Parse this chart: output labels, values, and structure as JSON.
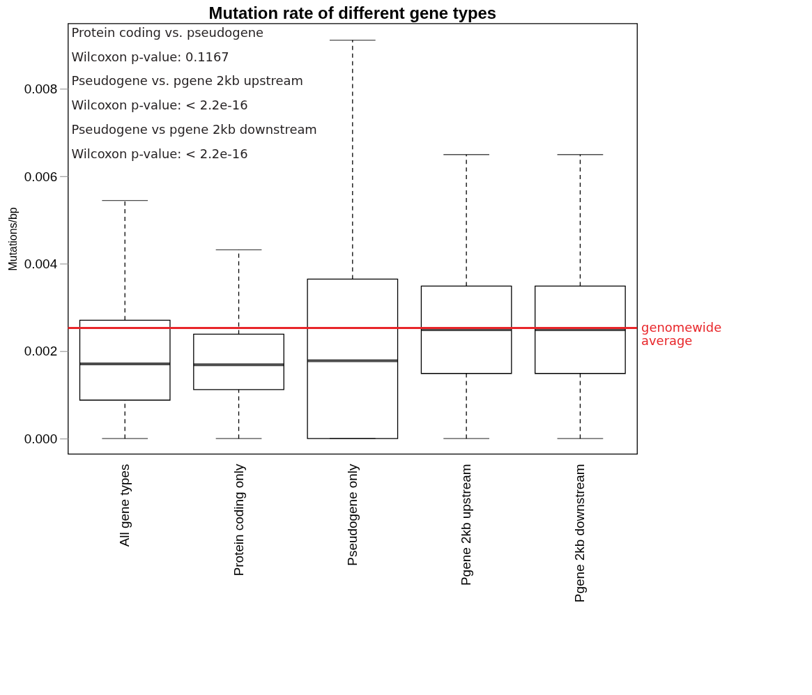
{
  "chart_data": {
    "type": "box",
    "title": "Mutation rate of different gene types",
    "ylabel": "Mutations/bp",
    "categories": [
      "All gene types",
      "Protein coding only",
      "Pseudogene only",
      "Pgene 2kb upstream",
      "Pgene 2kb downstream"
    ],
    "boxes": [
      {
        "low": 0,
        "q1": 0.00088,
        "median": 0.00171,
        "q3": 0.00271,
        "high": 0.00545
      },
      {
        "low": 0,
        "q1": 0.00112,
        "median": 0.00169,
        "q3": 0.00239,
        "high": 0.00432
      },
      {
        "low": 0,
        "q1": 0,
        "median": 0.00178,
        "q3": 0.00365,
        "high": 0.00912
      },
      {
        "low": 0,
        "q1": 0.00149,
        "median": 0.00249,
        "q3": 0.00349,
        "high": 0.0065
      },
      {
        "low": 0,
        "q1": 0.00149,
        "median": 0.00249,
        "q3": 0.00349,
        "high": 0.0065
      }
    ],
    "ylim": [
      -0.00035,
      0.0095
    ],
    "yticks": [
      {
        "value": 0,
        "label": "0.000"
      },
      0.002,
      0.004,
      0.006,
      0.008
    ],
    "ref_lines": [
      {
        "axis": "y",
        "value": 0.00253,
        "label": "genomewide\naverage",
        "color": "#e8262a"
      }
    ],
    "annotations": [
      "Protein coding vs. pseudogene",
      "Wilcoxon p-value: 0.1167",
      "Pseudogene vs. pgene 2kb upstream",
      "Wilcoxon p-value: < 2.2e-16",
      "Pseudogene vs pgene 2kb downstream",
      "Wilcoxon p-value: < 2.2e-16"
    ]
  }
}
